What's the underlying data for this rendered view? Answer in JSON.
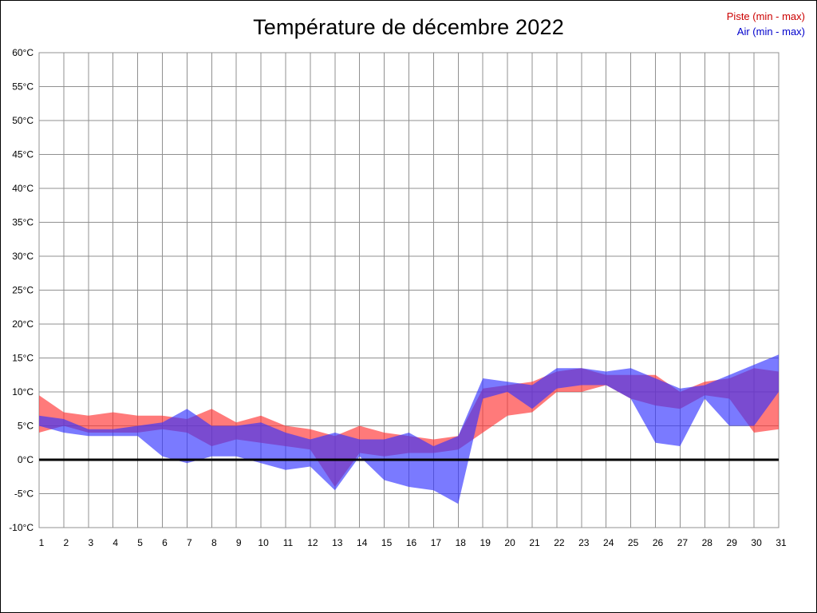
{
  "title": "Température de décembre 2022",
  "legend": [
    {
      "label": "Piste (min - max)",
      "color": "#cc0000"
    },
    {
      "label": "Air (min - max)",
      "color": "#0000cc"
    }
  ],
  "chart_data": {
    "type": "area",
    "title": "Température de décembre 2022",
    "x": [
      1,
      2,
      3,
      4,
      5,
      6,
      7,
      8,
      9,
      10,
      11,
      12,
      13,
      14,
      15,
      16,
      17,
      18,
      19,
      20,
      21,
      22,
      23,
      24,
      25,
      26,
      27,
      28,
      29,
      30,
      31
    ],
    "xlabel": "",
    "ylabel": "",
    "ylim": [
      -10,
      60
    ],
    "ytick_step": 5,
    "y_suffix": "°C",
    "grid": true,
    "zero_line": true,
    "legend_position": "top-right",
    "series": [
      {
        "name": "Piste (min - max)",
        "color": "#ff3333",
        "fill_opacity": 0.65,
        "min": [
          4,
          5,
          4,
          4,
          4,
          4.5,
          4,
          2,
          3,
          2.5,
          2,
          1.5,
          -4,
          1,
          0.5,
          1,
          1,
          1.5,
          4,
          6.5,
          7,
          10,
          10,
          11,
          9,
          8,
          7.5,
          9.5,
          9,
          4,
          4.5
        ],
        "max": [
          9.5,
          7,
          6.5,
          7,
          6.5,
          6.5,
          6,
          7.5,
          5.5,
          6.5,
          5,
          4.5,
          3.5,
          5,
          4,
          3.5,
          3,
          3.5,
          10.5,
          11,
          11.5,
          13,
          13.5,
          12.5,
          12.5,
          12.5,
          10,
          11.5,
          12,
          13.5,
          13
        ]
      },
      {
        "name": "Air (min - max)",
        "color": "#3333ff",
        "fill_opacity": 0.65,
        "min": [
          5,
          4,
          3.5,
          3.5,
          3.5,
          0.5,
          -0.5,
          0.5,
          0.5,
          -0.5,
          -1.5,
          -1,
          -4.5,
          0.5,
          -3,
          -4,
          -4.5,
          -6.5,
          9,
          10,
          7.5,
          10.5,
          11,
          11,
          9,
          2.5,
          2,
          9,
          5,
          5,
          10
        ],
        "max": [
          6.5,
          6,
          4.5,
          4.5,
          5,
          5.5,
          7.5,
          5,
          5,
          5.5,
          4,
          3,
          4,
          3,
          3,
          4,
          2,
          3.5,
          12,
          11.5,
          11,
          13.5,
          13.5,
          13,
          13.5,
          12,
          10.5,
          11,
          12.5,
          14,
          15.5
        ]
      }
    ]
  }
}
